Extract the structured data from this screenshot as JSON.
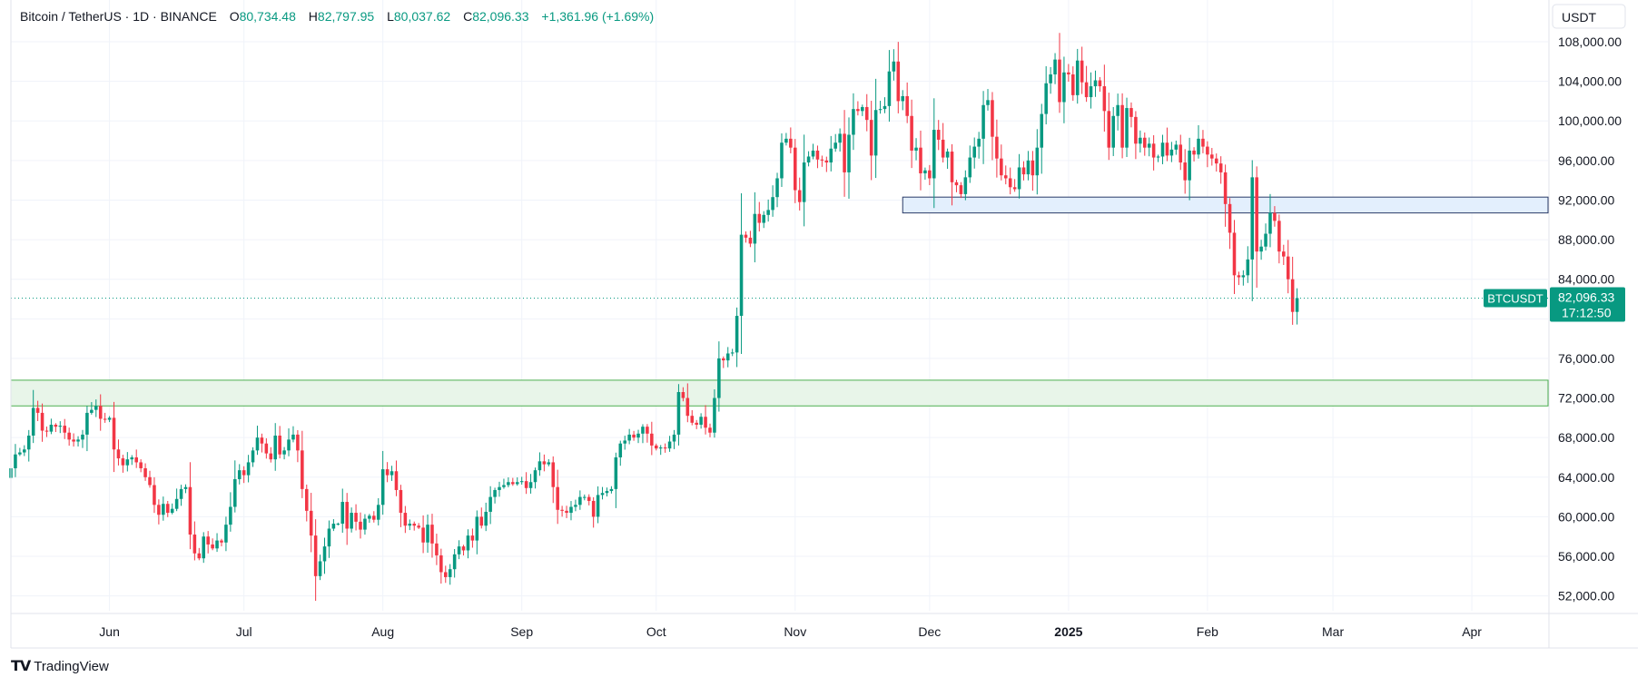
{
  "header": {
    "symbol": "Bitcoin / TetherUS · 1D · BINANCE",
    "open_label": "O",
    "open": "80,734.48",
    "high_label": "H",
    "high": "82,797.95",
    "low_label": "L",
    "low": "80,037.62",
    "close_label": "C",
    "close": "82,096.33",
    "change": "+1,361.96 (+1.69%)"
  },
  "currency": "USDT",
  "last_price": {
    "symbol_tag": "BTCUSDT",
    "price": "82,096.33",
    "countdown": "17:12:50",
    "value": 82096.33
  },
  "footer": {
    "brand": "TradingView"
  },
  "colors": {
    "up": "#089981",
    "down": "#f23645",
    "grid": "#f0f3fa",
    "zone_green": "#e8f5e9",
    "zone_green_border": "#4caf50",
    "zone_blue": "#e3effd",
    "zone_blue_border": "#2a3a66"
  },
  "chart_data": {
    "type": "candlestick",
    "ylim": [
      50500,
      110200
    ],
    "y_ticks": [
      52000,
      56000,
      60000,
      64000,
      68000,
      72000,
      76000,
      80000,
      84000,
      88000,
      92000,
      96000,
      100000,
      104000,
      108000
    ],
    "y_tick_labels": [
      "52,000.00",
      "56,000.00",
      "60,000.00",
      "64,000.00",
      "68,000.00",
      "72,000.00",
      "76,000.00",
      "",
      "84,000.00",
      "88,000.00",
      "92,000.00",
      "96,000.00",
      "100,000.00",
      "104,000.00",
      "108,000.00"
    ],
    "x_range": [
      "2024-05-10",
      "2025-04-18"
    ],
    "x_ticks": [
      {
        "date": "2024-06-01",
        "label": "Jun"
      },
      {
        "date": "2024-07-01",
        "label": "Jul"
      },
      {
        "date": "2024-08-01",
        "label": "Aug"
      },
      {
        "date": "2024-09-01",
        "label": "Sep"
      },
      {
        "date": "2024-10-01",
        "label": "Oct"
      },
      {
        "date": "2024-11-01",
        "label": "Nov"
      },
      {
        "date": "2024-12-01",
        "label": "Dec"
      },
      {
        "date": "2025-01-01",
        "label": "2025",
        "bold": true
      },
      {
        "date": "2025-02-01",
        "label": "Feb"
      },
      {
        "date": "2025-03-01",
        "label": "Mar"
      },
      {
        "date": "2025-04-01",
        "label": "Apr"
      }
    ],
    "zones": [
      {
        "from_date": "2024-05-10",
        "to_date": "2025-04-18",
        "low": 71200,
        "high": 73800,
        "style": "green"
      },
      {
        "from_date": "2024-11-25",
        "to_date": "2025-04-18",
        "low": 90700,
        "high": 92300,
        "style": "blue"
      }
    ],
    "start_date": "2024-05-10",
    "closes": [
      64900,
      66300,
      66500,
      66800,
      68200,
      71000,
      70500,
      68700,
      68600,
      69300,
      69100,
      69200,
      68500,
      67800,
      67600,
      67800,
      68300,
      70500,
      70800,
      71200,
      69900,
      69800,
      70000,
      66800,
      65900,
      65200,
      65800,
      66000,
      65500,
      64900,
      64000,
      63200,
      61200,
      60200,
      61300,
      60400,
      60800,
      61800,
      62800,
      63000,
      58200,
      56300,
      55800,
      58000,
      57200,
      56800,
      57600,
      57400,
      59200,
      61000,
      63800,
      64700,
      64200,
      65500,
      66700,
      68000,
      67400,
      66400,
      65800,
      68200,
      66300,
      66700,
      67800,
      68300,
      66700,
      62800,
      60600,
      58100,
      54000,
      55500,
      57000,
      58800,
      59300,
      59300,
      61500,
      58800,
      60400,
      59500,
      58700,
      59800,
      60100,
      59700,
      61200,
      64800,
      64200,
      64600,
      62700,
      60400,
      59100,
      59300,
      59100,
      58900,
      57400,
      59200,
      57300,
      56100,
      54400,
      53900,
      54700,
      56200,
      57000,
      56600,
      58100,
      57600,
      60000,
      59100,
      60500,
      62000,
      62700,
      63000,
      63200,
      63500,
      63300,
      63500,
      63600,
      62900,
      63500,
      64700,
      65600,
      65300,
      65500,
      63000,
      60700,
      60600,
      60400,
      61000,
      61200,
      62000,
      62000,
      61600,
      60000,
      62200,
      62400,
      62600,
      62800,
      66000,
      67400,
      67700,
      68300,
      68000,
      68400,
      69100,
      68400,
      67200,
      66900,
      67000,
      66900,
      67600,
      68300,
      72600,
      72000,
      70200,
      69500,
      69300,
      70100,
      69000,
      68500,
      72000,
      76000,
      75800,
      76500,
      76600,
      80300,
      88500,
      88200,
      87600,
      90600,
      89700,
      90500,
      91000,
      92300,
      94200,
      97800,
      98200,
      97300,
      93000,
      91800,
      95800,
      96400,
      97000,
      96100,
      96000,
      95800,
      97200,
      97800,
      98700,
      94800,
      98600,
      101200,
      101000,
      101400,
      100100,
      96500,
      101100,
      101200,
      101500,
      105000,
      106000,
      102000,
      102500,
      100500,
      97000,
      97300,
      94700,
      95000,
      94200,
      99100,
      98100,
      96300,
      96900,
      93800,
      93500,
      92600,
      94300,
      96300,
      97400,
      98200,
      101600,
      102100,
      98400,
      96200,
      94500,
      94200,
      93300,
      93100,
      95300,
      94600,
      96000,
      94500,
      97300,
      100700,
      103800,
      104700,
      106200,
      101900,
      104900,
      104700,
      102600,
      106100,
      103900,
      102400,
      103500,
      104100,
      103500,
      101000,
      97300,
      100500,
      101600,
      97300,
      101300,
      100400,
      97700,
      98300,
      97300,
      97700,
      96300,
      96400,
      97800,
      96500,
      97100,
      97600,
      95800,
      94000,
      97000,
      96600,
      98200,
      97400,
      96600,
      96200,
      95700,
      94800,
      91600,
      88700,
      84400,
      84200,
      84400,
      86000,
      94300,
      86800,
      87300,
      88600,
      90700,
      89900,
      86800,
      86300,
      84000,
      80700,
      82096
    ],
    "series_note_up": "#089981",
    "series_note_down": "#f23645"
  }
}
